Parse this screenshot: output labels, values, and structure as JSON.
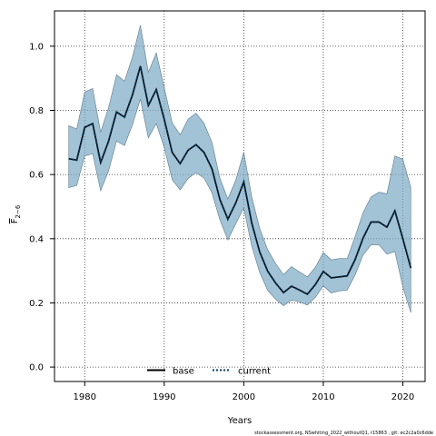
{
  "chart_data": {
    "type": "line",
    "xlabel": "Years",
    "ylabel_main": "F",
    "ylabel_sub": "2−6",
    "xlim": [
      1976.2,
      2022.8
    ],
    "ylim": [
      -0.045,
      1.11
    ],
    "x_ticks": [
      1980,
      1990,
      2000,
      2010,
      2020
    ],
    "y_ticks": [
      0.0,
      0.2,
      0.4,
      0.6,
      0.8,
      1.0
    ],
    "x_tick_labels": [
      "1980",
      "1990",
      "2000",
      "2010",
      "2020"
    ],
    "y_tick_labels": [
      "0.0",
      "0.2",
      "0.4",
      "0.6",
      "0.8",
      "1.0"
    ],
    "grid": true,
    "legend_position": "bottom-center",
    "band_color": "#7aa8c4",
    "line_color": "#000000",
    "current_color": "#0a3a5a",
    "x": [
      1978,
      1979,
      1980,
      1981,
      1982,
      1983,
      1984,
      1985,
      1986,
      1987,
      1988,
      1989,
      1990,
      1991,
      1992,
      1993,
      1994,
      1995,
      1996,
      1997,
      1998,
      1999,
      2000,
      2001,
      2002,
      2003,
      2004,
      2005,
      2006,
      2007,
      2008,
      2009,
      2010,
      2011,
      2012,
      2013,
      2014,
      2015,
      2016,
      2017,
      2018,
      2019,
      2020,
      2021
    ],
    "series": [
      {
        "name": "base",
        "style": "solid",
        "values": [
          0.649,
          0.645,
          0.747,
          0.759,
          0.637,
          0.704,
          0.795,
          0.779,
          0.848,
          0.938,
          0.815,
          0.865,
          0.772,
          0.669,
          0.634,
          0.676,
          0.693,
          0.669,
          0.618,
          0.522,
          0.461,
          0.512,
          0.577,
          0.449,
          0.359,
          0.299,
          0.262,
          0.232,
          0.252,
          0.24,
          0.227,
          0.257,
          0.298,
          0.278,
          0.281,
          0.284,
          0.335,
          0.402,
          0.452,
          0.452,
          0.436,
          0.487,
          0.4,
          0.309
        ]
      },
      {
        "name": "current",
        "style": "dotted",
        "values": [
          0.649,
          0.645,
          0.747,
          0.759,
          0.637,
          0.704,
          0.795,
          0.779,
          0.848,
          0.938,
          0.815,
          0.865,
          0.772,
          0.669,
          0.634,
          0.676,
          0.693,
          0.669,
          0.618,
          0.522,
          0.461,
          0.512,
          0.577,
          0.449,
          0.359,
          0.299,
          0.262,
          0.232,
          0.252,
          0.24,
          0.227,
          0.257,
          0.298,
          0.278,
          0.281,
          0.284,
          0.335,
          0.402,
          0.452,
          0.452,
          0.436,
          0.487,
          0.4,
          0.309
        ]
      }
    ],
    "band_upper": [
      0.752,
      0.742,
      0.857,
      0.868,
      0.732,
      0.808,
      0.911,
      0.891,
      0.966,
      1.065,
      0.919,
      0.979,
      0.871,
      0.761,
      0.724,
      0.773,
      0.791,
      0.76,
      0.7,
      0.588,
      0.524,
      0.583,
      0.67,
      0.53,
      0.432,
      0.366,
      0.323,
      0.288,
      0.313,
      0.297,
      0.281,
      0.311,
      0.357,
      0.334,
      0.338,
      0.338,
      0.407,
      0.481,
      0.53,
      0.545,
      0.54,
      0.658,
      0.648,
      0.56
    ],
    "band_lower": [
      0.559,
      0.566,
      0.658,
      0.665,
      0.55,
      0.611,
      0.704,
      0.69,
      0.755,
      0.835,
      0.714,
      0.759,
      0.684,
      0.584,
      0.552,
      0.588,
      0.606,
      0.589,
      0.543,
      0.458,
      0.396,
      0.447,
      0.496,
      0.377,
      0.295,
      0.239,
      0.211,
      0.191,
      0.209,
      0.203,
      0.193,
      0.217,
      0.253,
      0.231,
      0.237,
      0.24,
      0.287,
      0.349,
      0.381,
      0.381,
      0.352,
      0.36,
      0.25,
      0.17
    ]
  },
  "footer": "stockassessment.org, NSwhiting_2022_withoutQ1, r15863 , git: ec2c2a0c6dde"
}
